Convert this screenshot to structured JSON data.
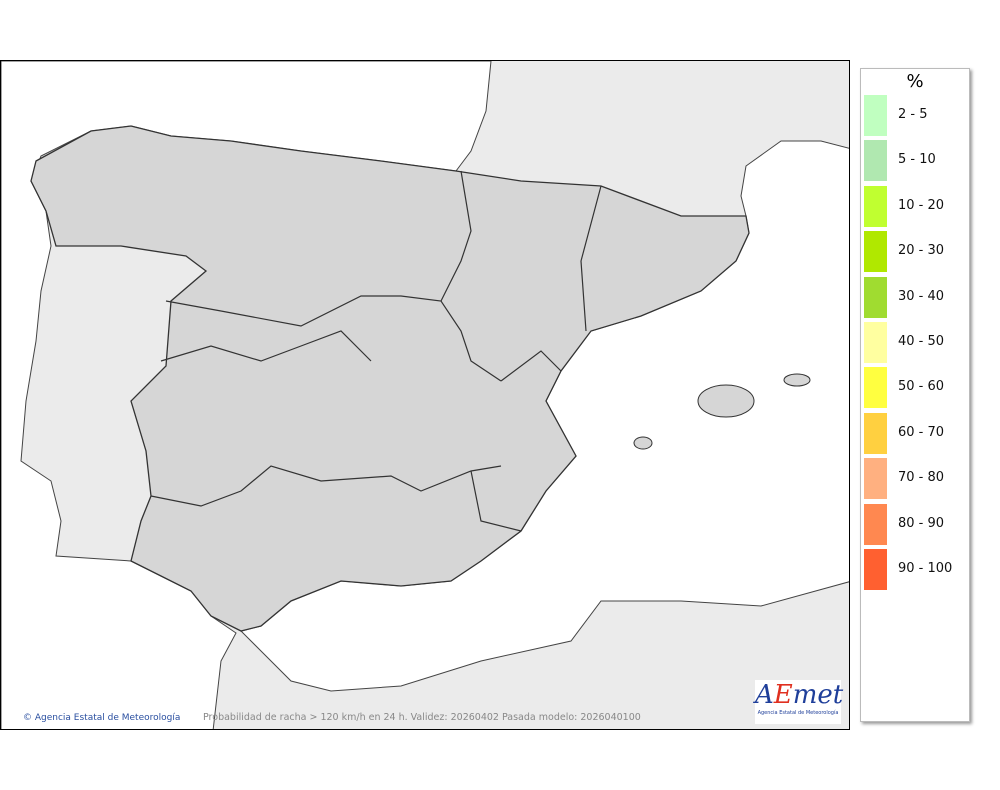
{
  "map": {
    "credit": "Agencia Estatal de Meteorología",
    "caption": "Probabilidad de racha > 120 km/h en 24 h. Validez: 20260402 Pasada modelo: 2026040100",
    "logo_text": "AEmet",
    "logo_subtext": "Agencia Estatal de Meteorología",
    "colors": {
      "sea": "#ffffff",
      "land": "#ebebeb",
      "spain": "#d6d6d6"
    }
  },
  "legend": {
    "title": "%",
    "items": [
      {
        "label": "2 - 5",
        "color": "#c0ffc0"
      },
      {
        "label": "5 - 10",
        "color": "#b0e8b0"
      },
      {
        "label": "10 - 20",
        "color": "#c0ff30"
      },
      {
        "label": "20 - 30",
        "color": "#b0e800"
      },
      {
        "label": "30 - 40",
        "color": "#a0dc30"
      },
      {
        "label": "40 - 50",
        "color": "#ffffa0"
      },
      {
        "label": "50 - 60",
        "color": "#ffff40"
      },
      {
        "label": "60 - 70",
        "color": "#ffd040"
      },
      {
        "label": "70 - 80",
        "color": "#ffb080"
      },
      {
        "label": "80 - 90",
        "color": "#ff8850"
      },
      {
        "label": "90 - 100",
        "color": "#ff6030"
      }
    ]
  }
}
